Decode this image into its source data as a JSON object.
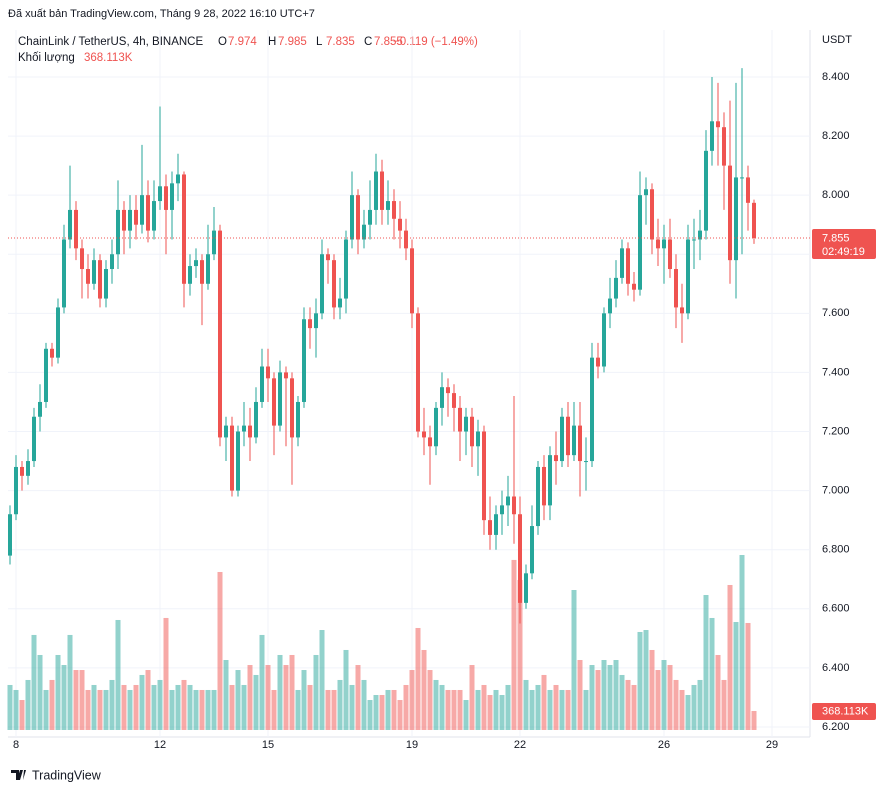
{
  "header": {
    "published": "Đã xuất bản TradingView.com, Tháng 9 28, 2022 16:10 UTC+7"
  },
  "footer": {
    "brand": "TradingView"
  },
  "chart_data": {
    "type": "candlestick",
    "title": "ChainLink / TetherUS, 4h, BINANCE",
    "ohlc_letters": [
      "O",
      "H",
      "L",
      "C"
    ],
    "change": "−0.119 (−1.49%)",
    "volume_title": "Khối lượng",
    "volume_label": "368.113K",
    "countdown": "02:49:19",
    "currency": "USDT",
    "up_color": "#26a69a",
    "down_color": "#ef5350",
    "grid": true,
    "ylim": [
      6.166,
      8.559
    ],
    "yticks": [
      {
        "value": 6.2,
        "label": "6.200"
      },
      {
        "value": 6.4,
        "label": "6.400"
      },
      {
        "value": 6.6,
        "label": "6.600"
      },
      {
        "value": 6.8,
        "label": "6.800"
      },
      {
        "value": 7.0,
        "label": "7.000"
      },
      {
        "value": 7.2,
        "label": "7.200"
      },
      {
        "value": 7.4,
        "label": "7.400"
      },
      {
        "value": 7.6,
        "label": "7.600"
      },
      {
        "value": 7.8,
        "label": "7.800"
      },
      {
        "value": 8.0,
        "label": "8.000"
      },
      {
        "value": 8.2,
        "label": "8.200"
      },
      {
        "value": 8.4,
        "label": "8.400"
      }
    ],
    "xticks": [
      {
        "value": 1,
        "label": "8"
      },
      {
        "value": 25,
        "label": "12"
      },
      {
        "value": 43,
        "label": "15"
      },
      {
        "value": 67,
        "label": "19"
      },
      {
        "value": 85,
        "label": "22"
      },
      {
        "value": 109,
        "label": "26"
      },
      {
        "value": 127,
        "label": "29"
      }
    ],
    "open": [
      6.78,
      6.92,
      7.08,
      7.05,
      7.1,
      7.25,
      7.3,
      7.48,
      7.45,
      7.62,
      7.85,
      7.95,
      7.82,
      7.75,
      7.7,
      7.78,
      7.65,
      7.75,
      7.8,
      7.95,
      7.88,
      7.95,
      7.9,
      8.0,
      7.88,
      7.98,
      8.03,
      7.95,
      8.04,
      8.07,
      7.7,
      7.76,
      7.78,
      7.7,
      7.8,
      7.88,
      7.18,
      7.22,
      7.0,
      7.2,
      7.22,
      7.18,
      7.3,
      7.42,
      7.38,
      7.22,
      7.4,
      7.38,
      7.18,
      7.3,
      7.58,
      7.55,
      7.6,
      7.8,
      7.78,
      7.62,
      7.65,
      7.85,
      8.0,
      7.85,
      7.9,
      7.95,
      8.08,
      7.95,
      7.98,
      7.92,
      7.88,
      7.82,
      7.6,
      7.2,
      7.18,
      7.15,
      7.28,
      7.35,
      7.33,
      7.28,
      7.2,
      7.25,
      7.15,
      7.2,
      6.9,
      6.85,
      6.92,
      6.95,
      6.98,
      6.92,
      6.62,
      6.72,
      6.88,
      7.08,
      6.95,
      7.12,
      7.1,
      7.25,
      7.12,
      7.22,
      7.1,
      7.1,
      7.45,
      7.42,
      7.6,
      7.65,
      7.72,
      7.82,
      7.7,
      7.68,
      8.0,
      8.02,
      7.85,
      7.82,
      7.85,
      7.75,
      7.62,
      7.6,
      7.85,
      7.85,
      7.88,
      8.15,
      8.25,
      8.23,
      8.1,
      7.78,
      8.06,
      8.06,
      7.974
    ],
    "high": [
      6.95,
      7.12,
      7.1,
      7.14,
      7.28,
      7.36,
      7.5,
      7.5,
      7.65,
      7.9,
      8.1,
      7.98,
      7.85,
      7.8,
      7.82,
      7.8,
      7.78,
      7.85,
      8.05,
      7.98,
      8.0,
      8.0,
      8.17,
      8.05,
      8.05,
      8.3,
      8.07,
      8.08,
      8.14,
      8.08,
      7.8,
      7.82,
      7.8,
      7.9,
      7.96,
      7.9,
      7.25,
      7.25,
      7.22,
      7.3,
      7.28,
      7.35,
      7.48,
      7.48,
      7.4,
      7.44,
      7.42,
      7.4,
      7.32,
      7.62,
      7.62,
      7.65,
      7.85,
      7.82,
      7.8,
      7.72,
      7.88,
      8.08,
      8.02,
      7.95,
      8.05,
      8.14,
      8.12,
      8.05,
      8.02,
      7.98,
      7.92,
      7.85,
      7.62,
      7.28,
      7.22,
      7.3,
      7.4,
      7.38,
      7.36,
      7.32,
      7.28,
      7.28,
      7.24,
      7.22,
      6.98,
      6.95,
      7.0,
      7.05,
      7.32,
      6.98,
      6.75,
      6.95,
      7.1,
      7.12,
      7.15,
      7.2,
      7.28,
      7.3,
      7.3,
      7.3,
      7.18,
      7.5,
      7.5,
      7.62,
      7.72,
      7.78,
      7.85,
      7.84,
      7.74,
      8.08,
      8.06,
      8.04,
      7.92,
      7.9,
      7.92,
      7.8,
      7.7,
      7.9,
      7.92,
      7.95,
      8.22,
      8.4,
      8.38,
      8.28,
      8.32,
      8.38,
      8.43,
      8.1,
      7.985
    ],
    "low": [
      6.75,
      6.9,
      7.0,
      7.02,
      7.08,
      7.2,
      7.28,
      7.42,
      7.43,
      7.6,
      7.82,
      7.78,
      7.65,
      7.65,
      7.68,
      7.62,
      7.62,
      7.7,
      7.75,
      7.8,
      7.82,
      7.85,
      7.87,
      7.84,
      7.85,
      7.95,
      7.8,
      7.85,
      7.98,
      7.62,
      7.66,
      7.72,
      7.56,
      7.68,
      7.78,
      7.15,
      7.1,
      6.98,
      6.98,
      7.15,
      7.1,
      7.16,
      7.28,
      7.3,
      7.12,
      7.2,
      7.15,
      7.02,
      7.15,
      7.28,
      7.48,
      7.45,
      7.58,
      7.7,
      7.58,
      7.58,
      7.6,
      7.82,
      7.8,
      7.82,
      7.85,
      7.9,
      7.9,
      7.9,
      7.85,
      7.82,
      7.78,
      7.55,
      7.18,
      7.12,
      7.02,
      7.12,
      7.22,
      7.25,
      7.2,
      7.1,
      7.12,
      7.08,
      7.05,
      6.85,
      6.8,
      6.8,
      6.85,
      6.88,
      6.82,
      6.55,
      6.6,
      6.7,
      6.85,
      6.9,
      6.9,
      7.02,
      7.08,
      7.08,
      7.1,
      6.98,
      7.0,
      7.08,
      7.38,
      7.4,
      7.55,
      7.62,
      7.7,
      7.66,
      7.64,
      7.66,
      7.9,
      7.8,
      7.76,
      7.7,
      7.72,
      7.55,
      7.5,
      7.58,
      7.75,
      7.78,
      7.85,
      8.1,
      8.1,
      7.95,
      7.7,
      7.65,
      7.8,
      7.88,
      7.835
    ],
    "close": [
      6.92,
      7.08,
      7.05,
      7.1,
      7.25,
      7.3,
      7.48,
      7.45,
      7.62,
      7.85,
      7.95,
      7.82,
      7.75,
      7.7,
      7.78,
      7.65,
      7.75,
      7.8,
      7.95,
      7.88,
      7.95,
      7.9,
      8.0,
      7.88,
      7.98,
      8.03,
      7.95,
      8.04,
      8.07,
      7.7,
      7.76,
      7.78,
      7.7,
      7.8,
      7.88,
      7.18,
      7.22,
      7.0,
      7.2,
      7.22,
      7.18,
      7.3,
      7.42,
      7.38,
      7.22,
      7.4,
      7.38,
      7.18,
      7.3,
      7.58,
      7.55,
      7.6,
      7.8,
      7.78,
      7.62,
      7.65,
      7.85,
      8.0,
      7.85,
      7.9,
      7.95,
      8.08,
      7.95,
      7.98,
      7.92,
      7.88,
      7.82,
      7.6,
      7.2,
      7.18,
      7.15,
      7.28,
      7.35,
      7.33,
      7.28,
      7.2,
      7.25,
      7.15,
      7.2,
      6.9,
      6.85,
      6.92,
      6.95,
      6.98,
      6.92,
      6.62,
      6.72,
      6.88,
      7.08,
      6.95,
      7.12,
      7.1,
      7.25,
      7.12,
      7.22,
      7.1,
      7.1,
      7.45,
      7.42,
      7.6,
      7.65,
      7.72,
      7.82,
      7.7,
      7.68,
      8.0,
      8.02,
      7.85,
      7.82,
      7.85,
      7.75,
      7.62,
      7.6,
      7.85,
      7.85,
      7.88,
      8.15,
      8.25,
      8.23,
      8.1,
      7.78,
      8.06,
      8.06,
      7.974,
      7.855
    ],
    "volume": [
      872000,
      775000,
      581000,
      969000,
      1841000,
      1453000,
      775000,
      969000,
      1453000,
      1259000,
      1841000,
      1162000,
      1162000,
      775000,
      872000,
      775000,
      775000,
      969000,
      2131000,
      872000,
      775000,
      872000,
      1066000,
      1162000,
      872000,
      969000,
      2170000,
      775000,
      872000,
      969000,
      872000,
      775000,
      775000,
      775000,
      775000,
      3061000,
      1356000,
      872000,
      1162000,
      872000,
      1259000,
      1066000,
      1841000,
      1259000,
      775000,
      1453000,
      1259000,
      1453000,
      775000,
      1162000,
      872000,
      1453000,
      1937000,
      775000,
      775000,
      969000,
      1550000,
      872000,
      1259000,
      969000,
      581000,
      678000,
      678000,
      775000,
      775000,
      581000,
      872000,
      1162000,
      1976000,
      1550000,
      1162000,
      969000,
      872000,
      775000,
      775000,
      775000,
      581000,
      1259000,
      775000,
      872000,
      678000,
      775000,
      678000,
      872000,
      3294000,
      2906000,
      969000,
      775000,
      872000,
      1066000,
      775000,
      872000,
      775000,
      775000,
      2712000,
      1356000,
      775000,
      1259000,
      1162000,
      1356000,
      1259000,
      1356000,
      1066000,
      969000,
      872000,
      1899000,
      1937000,
      1550000,
      1162000,
      1356000,
      1259000,
      969000,
      775000,
      678000,
      872000,
      969000,
      2615000,
      2170000,
      1453000,
      969000,
      2809000,
      2092000,
      3390000,
      2073000,
      368113
    ]
  }
}
